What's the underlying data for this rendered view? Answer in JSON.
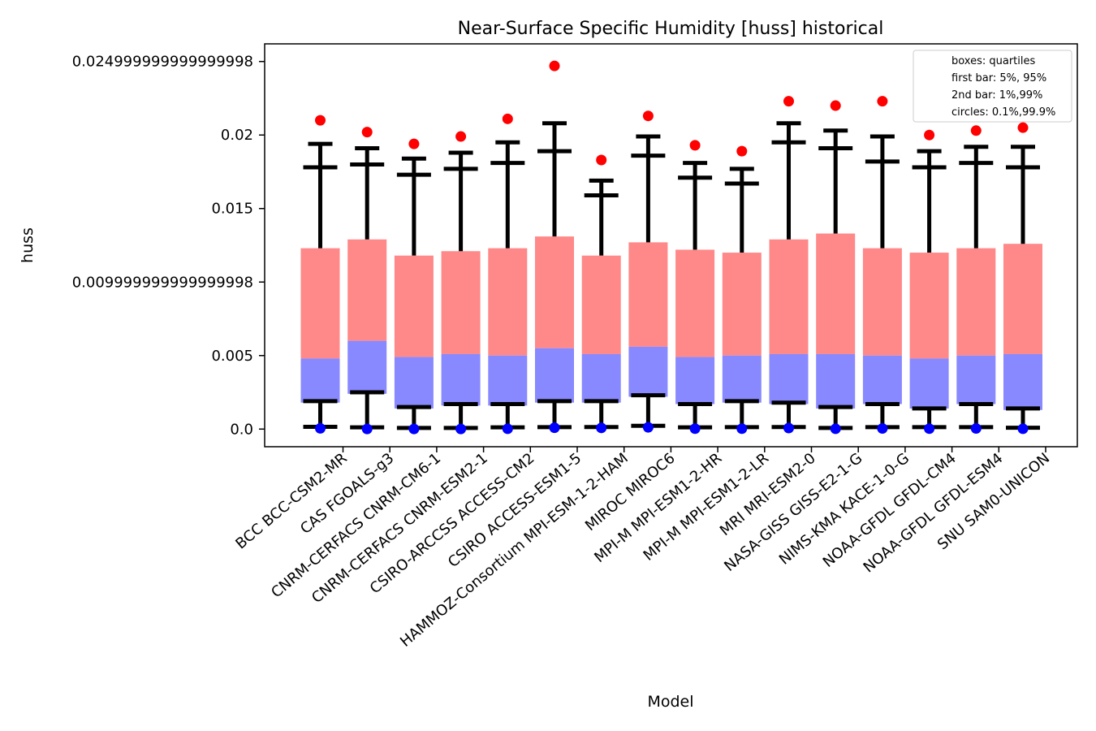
{
  "chart_data": {
    "type": "box",
    "title": "Near-Surface Specific Humidity [huss] historical",
    "xlabel": "Model",
    "ylabel": "huss",
    "ylim": [
      -0.0012,
      0.0262
    ],
    "yticks": [
      0.0,
      0.005,
      0.009999999999999998,
      0.015,
      0.02,
      0.024999999999999998
    ],
    "ytick_labels": [
      "0.0",
      "0.005",
      "0.009999999999999998",
      "0.015",
      "0.02",
      "0.024999999999999998"
    ],
    "grid": false,
    "legend_position": "top-right",
    "legend": [
      "boxes: quartiles",
      "first bar: 5%, 95%",
      "2nd bar: 1%,99%",
      "circles: 0.1%,99.9%"
    ],
    "colors": {
      "upper_box": "#ff8888",
      "lower_box": "#8888ff",
      "whisker": "#000000",
      "high_circle": "#ff0000",
      "low_circle": "#0000ff"
    },
    "categories": [
      "BCC BCC-CSM2-MR",
      "CAS FGOALS-g3",
      "CNRM-CERFACS CNRM-CM6-1",
      "CNRM-CERFACS CNRM-ESM2-1",
      "CSIRO-ARCCSS ACCESS-CM2",
      "CSIRO ACCESS-ESM1-5",
      "HAMMOZ-Consortium MPI-ESM-1-2-HAM",
      "MIROC MIROC6",
      "MPI-M MPI-ESM1-2-HR",
      "MPI-M MPI-ESM1-2-LR",
      "MRI MRI-ESM2-0",
      "NASA-GISS GISS-E2-1-G",
      "NIMS-KMA KACE-1-0-G",
      "NOAA-GFDL GFDL-CM4",
      "NOAA-GFDL GFDL-ESM4",
      "SNU SAM0-UNICON"
    ],
    "series": {
      "p0_1": [
        5e-05,
        1e-05,
        1e-05,
        1e-05,
        2e-05,
        9e-05,
        8e-05,
        0.00012,
        3e-05,
        3e-05,
        7e-05,
        2e-05,
        4e-05,
        3e-05,
        4e-05,
        2e-05
      ],
      "p1": [
        0.00015,
        0.00012,
        8e-05,
        8e-05,
        0.00012,
        0.00013,
        0.00014,
        0.00022,
        0.00012,
        0.00013,
        0.00014,
        8e-05,
        0.00013,
        0.00013,
        0.00013,
        9e-05
      ],
      "p5": [
        0.0019,
        0.0025,
        0.0015,
        0.0017,
        0.0017,
        0.0019,
        0.0019,
        0.0023,
        0.0017,
        0.0019,
        0.0018,
        0.0015,
        0.0017,
        0.0014,
        0.0017,
        0.0014
      ],
      "q1": [
        0.0018,
        0.0024,
        0.0014,
        0.0016,
        0.0016,
        0.0018,
        0.0018,
        0.0022,
        0.0017,
        0.0018,
        0.0017,
        0.0014,
        0.0017,
        0.0014,
        0.0017,
        0.0013
      ],
      "median": [
        0.0048,
        0.006,
        0.0049,
        0.0051,
        0.005,
        0.0055,
        0.0051,
        0.0056,
        0.0049,
        0.005,
        0.0051,
        0.0051,
        0.005,
        0.0048,
        0.005,
        0.0051
      ],
      "q3": [
        0.0123,
        0.0129,
        0.0118,
        0.0121,
        0.0123,
        0.0131,
        0.0118,
        0.0127,
        0.0122,
        0.012,
        0.0129,
        0.0133,
        0.0123,
        0.012,
        0.0123,
        0.0126
      ],
      "p95": [
        0.0178,
        0.018,
        0.0173,
        0.0177,
        0.0181,
        0.0189,
        0.0159,
        0.0186,
        0.0171,
        0.0167,
        0.0195,
        0.0191,
        0.0182,
        0.0178,
        0.0181,
        0.0178
      ],
      "p99": [
        0.0194,
        0.0191,
        0.0184,
        0.0188,
        0.0195,
        0.0208,
        0.0169,
        0.0199,
        0.0181,
        0.0177,
        0.0208,
        0.0203,
        0.0199,
        0.0189,
        0.0192,
        0.0192
      ],
      "p99_9": [
        0.021,
        0.0202,
        0.0194,
        0.0199,
        0.0211,
        0.0247,
        0.0183,
        0.0213,
        0.0193,
        0.0189,
        0.0223,
        0.022,
        0.0223,
        0.02,
        0.0203,
        0.0205
      ]
    }
  }
}
